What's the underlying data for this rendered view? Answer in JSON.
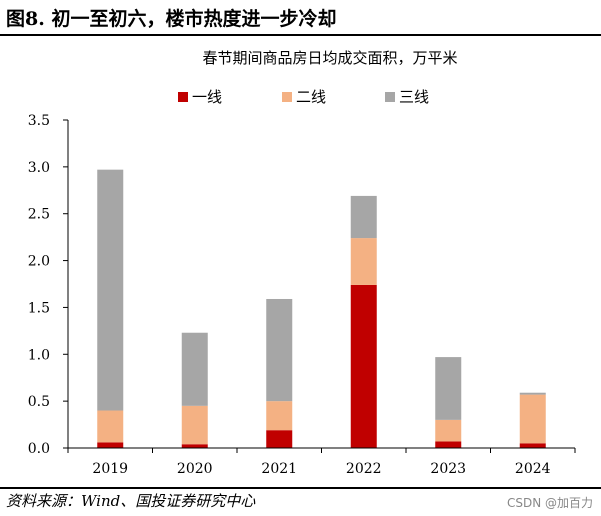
{
  "figure_title": "图8. 初一至初六，楼市热度进一步冷却",
  "source": "资料来源：Wind、国投证券研究中心",
  "watermark": "CSDN @加百力",
  "colors": {
    "tier1": "#C00000",
    "tier2": "#F4B183",
    "tier3": "#A6A6A6",
    "axis": "#000000"
  },
  "chart_data": {
    "type": "bar",
    "stacked": true,
    "title": "春节期间商品房日均成交面积，万平米",
    "categories": [
      "2019",
      "2020",
      "2021",
      "2022",
      "2023",
      "2024"
    ],
    "series": [
      {
        "name": "一线",
        "values": [
          0.06,
          0.04,
          0.19,
          1.74,
          0.07,
          0.05
        ]
      },
      {
        "name": "二线",
        "values": [
          0.34,
          0.41,
          0.31,
          0.5,
          0.23,
          0.52
        ]
      },
      {
        "name": "三线",
        "values": [
          2.57,
          0.78,
          1.09,
          0.45,
          0.67,
          0.02
        ]
      }
    ],
    "ylim": [
      0,
      3.5
    ],
    "yticks": [
      "0.0",
      "0.5",
      "1.0",
      "1.5",
      "2.0",
      "2.5",
      "3.0",
      "3.5"
    ],
    "legend_position": "top-center",
    "xlabel": "",
    "ylabel": ""
  }
}
